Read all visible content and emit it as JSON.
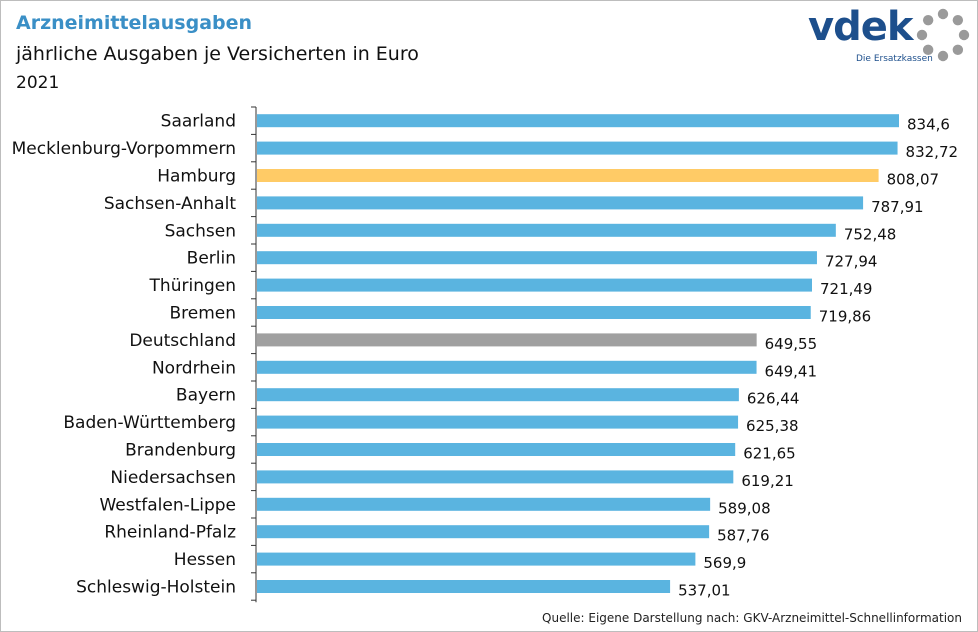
{
  "header": {
    "title": "Arzneimittelausgaben",
    "subtitle": "jährliche Ausgaben je Versicherten in Euro",
    "year": "2021"
  },
  "logo": {
    "name": "vdek",
    "tagline": "Die Ersatzkassen"
  },
  "footer": {
    "source": "Quelle: Eigene Darstellung nach: GKV-Arzneimittel-Schnellinformation"
  },
  "colors": {
    "default_bar": "#5ab4e0",
    "highlight_bar": "#ffcb66",
    "reference_bar": "#a0a0a0",
    "title": "#3a8fc6",
    "logo": "#1d4f8c",
    "logo_ring": "#9a9a9a"
  },
  "chart_data": {
    "type": "bar",
    "orientation": "horizontal",
    "title": "Arzneimittelausgaben",
    "xlabel": "",
    "ylabel": "",
    "xlim": [
      0,
      900
    ],
    "grid": false,
    "legend": "none",
    "categories": [
      "Saarland",
      "Mecklenburg-Vorpommern",
      "Hamburg",
      "Sachsen-Anhalt",
      "Sachsen",
      "Berlin",
      "Thüringen",
      "Bremen",
      "Deutschland",
      "Nordrhein",
      "Bayern",
      "Baden-Württemberg",
      "Brandenburg",
      "Niedersachsen",
      "Westfalen-Lippe",
      "Rheinland-Pfalz",
      "Hessen",
      "Schleswig-Holstein"
    ],
    "values": [
      834.6,
      832.72,
      808.07,
      787.91,
      752.48,
      727.94,
      721.49,
      719.86,
      649.55,
      649.41,
      626.44,
      625.38,
      621.65,
      619.21,
      589.08,
      587.76,
      569.9,
      537.01
    ],
    "value_labels": [
      "834,6",
      "832,72",
      "808,07",
      "787,91",
      "752,48",
      "727,94",
      "721,49",
      "719,86",
      "649,55",
      "649,41",
      "626,44",
      "625,38",
      "621,65",
      "619,21",
      "589,08",
      "587,76",
      "569,9",
      "537,01"
    ],
    "highlight": [
      "Hamburg"
    ],
    "reference": [
      "Deutschland"
    ]
  }
}
